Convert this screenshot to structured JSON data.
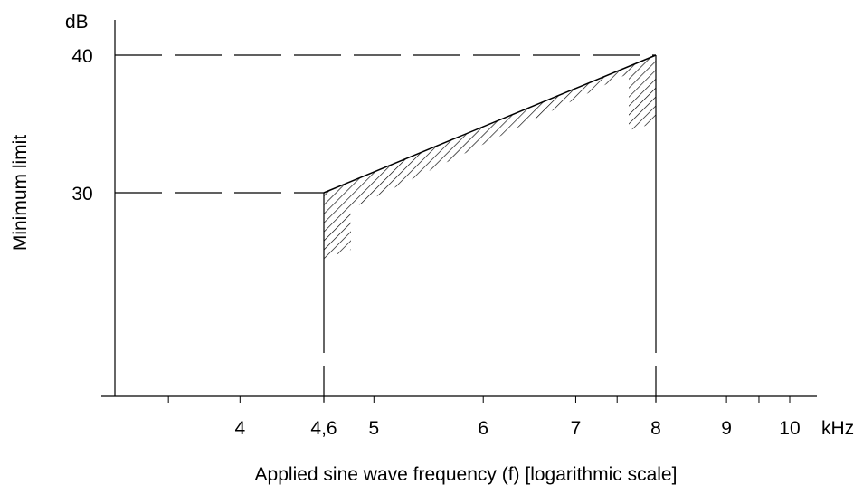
{
  "chart_data": {
    "type": "line",
    "title": "",
    "xlabel": "Applied sine wave frequency (f) [logarithmic scale]",
    "ylabel": "Minimum limit",
    "x_unit": "kHz",
    "y_unit": "dB",
    "x_scale": "log",
    "xlim": [
      3.55,
      11.0
    ],
    "x_ticks": [
      3.55,
      4,
      4.6,
      5,
      6,
      7,
      7.5,
      8,
      9,
      9.5,
      10
    ],
    "x_tick_labels": [
      {
        "value": 4,
        "label": "4"
      },
      {
        "value": 4.6,
        "label": "4,6"
      },
      {
        "value": 5,
        "label": "5"
      },
      {
        "value": 6,
        "label": "6"
      },
      {
        "value": 7,
        "label": "7"
      },
      {
        "value": 8,
        "label": "8"
      },
      {
        "value": 9,
        "label": "9"
      },
      {
        "value": 10,
        "label": "10"
      }
    ],
    "y_ticks": [
      {
        "value": 30,
        "label": "30"
      },
      {
        "value": 40,
        "label": "40"
      }
    ],
    "ylim": [
      15.2,
      43.0
    ],
    "series": [
      {
        "x": [
          4.6,
          8
        ],
        "y": [
          30,
          40
        ]
      }
    ],
    "reference_lines": [
      {
        "orientation": "horizontal",
        "y": 30,
        "x_to": 4.6,
        "style": "dashed"
      },
      {
        "orientation": "horizontal",
        "y": 40,
        "x_to": 8,
        "style": "dashed"
      },
      {
        "orientation": "vertical",
        "x": 4.6,
        "style": "solid-dashed"
      },
      {
        "orientation": "vertical",
        "x": 8,
        "style": "solid-dashed"
      }
    ],
    "shaded_region": "hatched band below limit line",
    "grid": false,
    "legend": "none"
  }
}
